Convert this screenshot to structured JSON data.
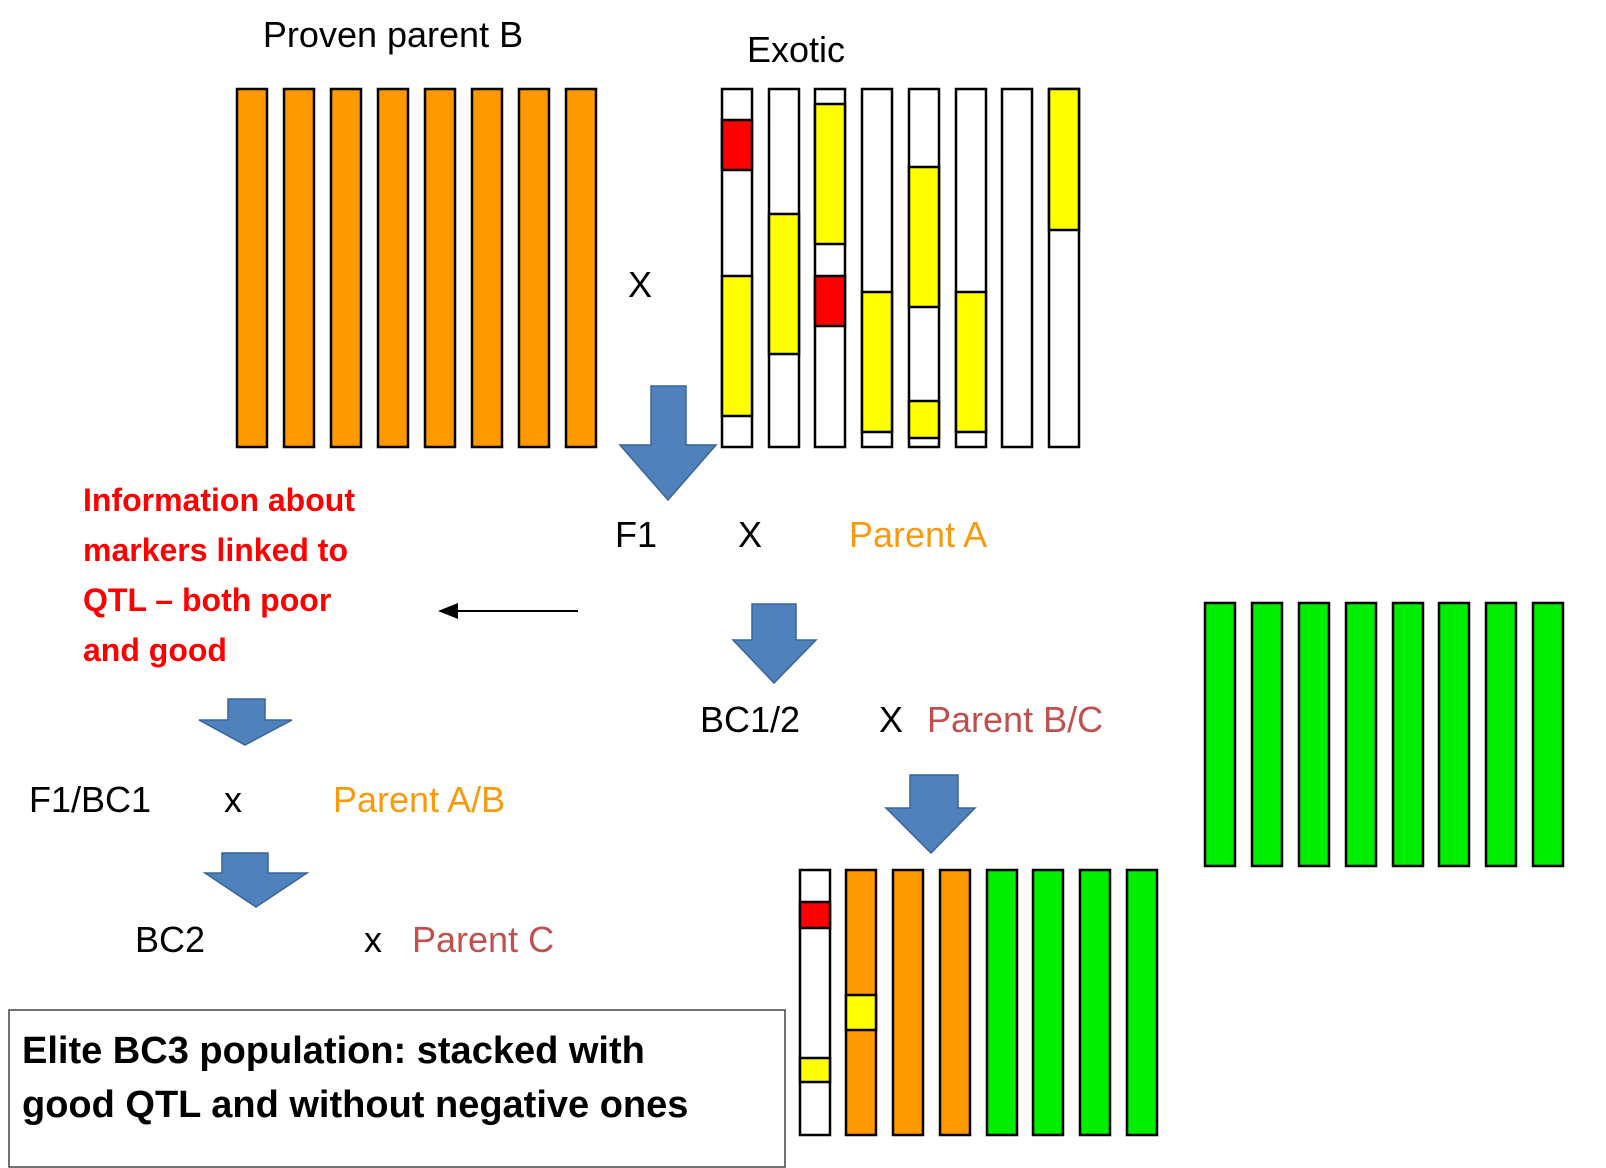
{
  "top": {
    "proven_parent": "Proven parent B",
    "exotic": "Exotic",
    "cross": "X"
  },
  "info_note": {
    "lines": [
      "Information about",
      "markers linked to",
      "QTL – both poor",
      "and good"
    ]
  },
  "right_branch": {
    "step1": {
      "left": "F1",
      "cross": "X",
      "parent": "Parent A"
    },
    "step2": {
      "left": "BC1/2",
      "cross": "X",
      "parent": "Parent B/C"
    }
  },
  "left_branch": {
    "step1": {
      "left": "F1/BC1",
      "cross": "x",
      "parent": "Parent A/B"
    },
    "step2": {
      "left": "BC2",
      "cross": "x",
      "parent": "Parent C"
    }
  },
  "result_box": {
    "lines": [
      "Elite BC3 population: stacked with",
      "good QTL and without negative ones"
    ]
  }
}
